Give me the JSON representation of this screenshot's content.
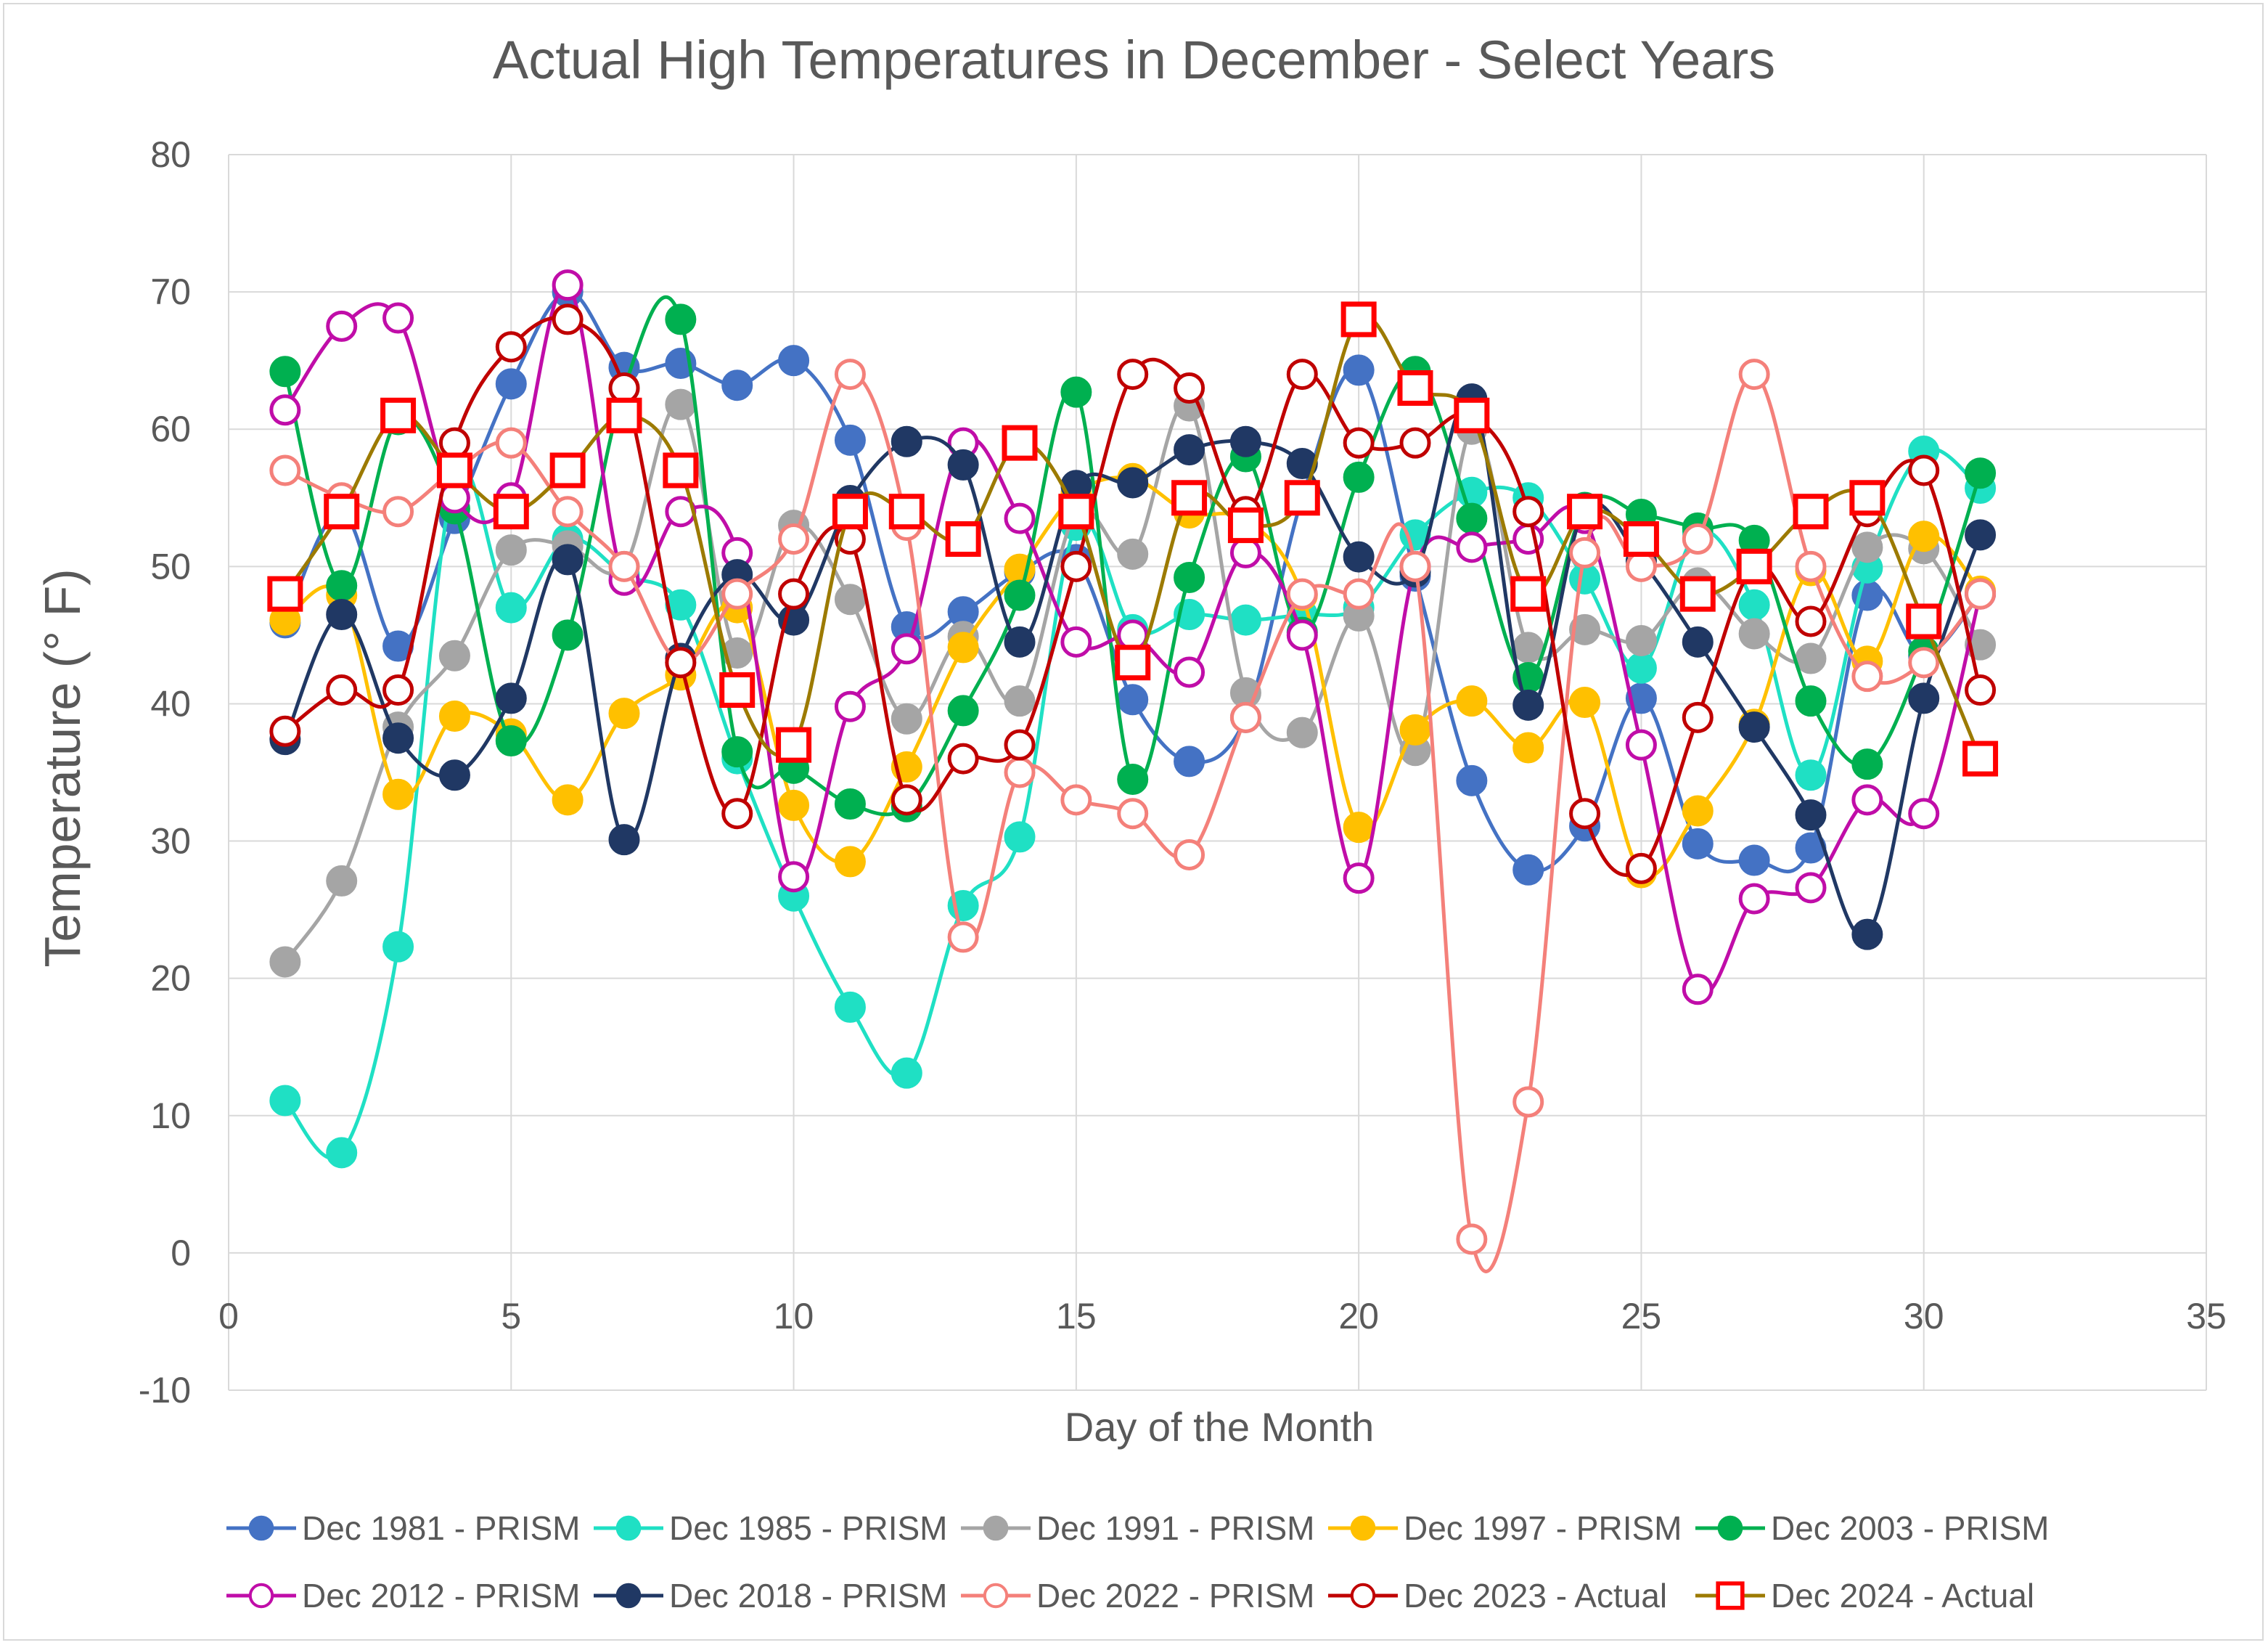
{
  "chart_data": {
    "type": "scatter",
    "title": "Actual High Temperatures in December - Select Years",
    "xlabel": "Day of the Month",
    "ylabel": "Temperature (° F)",
    "xlim": [
      0,
      35
    ],
    "ylim": [
      -10,
      80
    ],
    "xticks": [
      0,
      5,
      10,
      15,
      20,
      25,
      30,
      35
    ],
    "yticks": [
      -10,
      0,
      10,
      20,
      30,
      40,
      50,
      60,
      70,
      80
    ],
    "grid": true,
    "smooth_lines": true,
    "legend_position": "bottom",
    "x": [
      1,
      2,
      3,
      4,
      5,
      6,
      7,
      8,
      9,
      10,
      11,
      12,
      13,
      14,
      15,
      16,
      17,
      18,
      19,
      20,
      21,
      22,
      23,
      24,
      25,
      26,
      27,
      28,
      29,
      30,
      31
    ],
    "series": [
      {
        "name": "Dec 1981 - PRISM",
        "color": "#4472c4",
        "marker": "filled-circle",
        "values": [
          45.9,
          54,
          44.2,
          53.5,
          63.3,
          70,
          64.5,
          64.8,
          63.2,
          65,
          59.2,
          45.6,
          46.7,
          49.6,
          50.5,
          40.3,
          35.8,
          39,
          55,
          64.3,
          49.3,
          34.4,
          27.9,
          31.1,
          40.4,
          29.8,
          28.6,
          29.5,
          47.9,
          43.5,
          48
        ]
      },
      {
        "name": "Dec 1985 - PRISM",
        "color": "#1fe0c4",
        "marker": "filled-circle",
        "values": [
          11.1,
          7.3,
          22.3,
          56.4,
          47,
          52,
          49.4,
          47.2,
          36,
          26,
          17.9,
          13.1,
          25.3,
          30.3,
          53,
          45.4,
          46.5,
          46.1,
          46.5,
          47,
          52.3,
          55.4,
          55,
          49.1,
          42.6,
          52.5,
          47.2,
          34.8,
          49.9,
          58.4,
          55.7
        ]
      },
      {
        "name": "Dec 1991 - PRISM",
        "color": "#a5a5a5",
        "marker": "filled-circle",
        "values": [
          21.2,
          27.1,
          38.3,
          43.5,
          51.2,
          51.5,
          50,
          61.8,
          43.7,
          53,
          47.6,
          38.9,
          44.9,
          40.2,
          53.9,
          50.9,
          61.7,
          40.8,
          37.9,
          46.4,
          36.6,
          60,
          44.1,
          45.4,
          44.6,
          48.8,
          45.1,
          43.3,
          51.4,
          51.3,
          44.3
        ]
      },
      {
        "name": "Dec 1997 - PRISM",
        "color": "#ffc000",
        "marker": "filled-circle",
        "values": [
          46.1,
          47.9,
          33.4,
          39.1,
          37.8,
          33,
          39.3,
          42.1,
          47,
          32.6,
          28.5,
          35.4,
          44.1,
          49.8,
          55.3,
          56.4,
          53.9,
          53.4,
          47.9,
          31,
          38.1,
          40.2,
          36.8,
          40.1,
          27.7,
          32.2,
          38.5,
          49.7,
          43.1,
          52.2,
          48.2
        ]
      },
      {
        "name": "Dec 2003 - PRISM",
        "color": "#00b050",
        "marker": "filled-circle",
        "values": [
          64.2,
          48.6,
          60.7,
          54.2,
          37.3,
          45,
          63,
          68,
          36.5,
          35.3,
          32.7,
          32.5,
          39.5,
          47.9,
          62.7,
          34.5,
          49.2,
          58,
          45.2,
          56.5,
          64.2,
          53.5,
          41.9,
          54.3,
          53.8,
          52.8,
          51.9,
          40.2,
          35.6,
          43.8,
          56.8
        ]
      },
      {
        "name": "Dec 2012 - PRISM",
        "color": "#c00da8",
        "marker": "open-circle",
        "values": [
          61.4,
          67.5,
          68.1,
          55,
          55,
          70.5,
          49,
          54,
          51,
          27.4,
          39.8,
          44,
          59,
          53.5,
          44.5,
          45,
          42.3,
          51,
          45,
          27.3,
          50,
          51.4,
          52,
          53.5,
          37,
          19.2,
          25.8,
          26.6,
          33,
          32,
          48
        ]
      },
      {
        "name": "Dec 2018 - PRISM",
        "color": "#203864",
        "marker": "filled-circle",
        "values": [
          37.4,
          46.5,
          37.5,
          34.8,
          40.4,
          50.5,
          30.1,
          43.3,
          49.4,
          46.1,
          54.8,
          59.1,
          57.4,
          44.5,
          55.9,
          56.1,
          58.5,
          59.1,
          57.5,
          50.7,
          49.6,
          62.2,
          39.9,
          54.2,
          50.4,
          44.5,
          38.3,
          31.9,
          23.2,
          40.4,
          52.3
        ]
      },
      {
        "name": "Dec 2022 - PRISM",
        "color": "#f4807a",
        "marker": "open-circle",
        "values": [
          57,
          55,
          54,
          57,
          59,
          54,
          50,
          43,
          48,
          52,
          64,
          53,
          23,
          35,
          33,
          32,
          29,
          39,
          48,
          48,
          50,
          1,
          11,
          51,
          50,
          52,
          64,
          50,
          42,
          43,
          48
        ]
      },
      {
        "name": "Dec 2023 - Actual",
        "color": "#c00000",
        "marker": "open-circle",
        "values": [
          38,
          41,
          41,
          59,
          66,
          68,
          63,
          43,
          32,
          48,
          52,
          33,
          36,
          37,
          50,
          64,
          63,
          54,
          64,
          59,
          59,
          61,
          54,
          32,
          28,
          39,
          50,
          46,
          54,
          57,
          41
        ]
      },
      {
        "name": "Dec 2024 - Actual",
        "color": "#9c7a00",
        "marker": "open-square",
        "marker_color": "#ff0000",
        "values": [
          48,
          54,
          61,
          57,
          54,
          57,
          61,
          57,
          41,
          37,
          54,
          54,
          52,
          59,
          54,
          43,
          55,
          53,
          55,
          68,
          63,
          61,
          48,
          54,
          52,
          48,
          50,
          54,
          55,
          46,
          36
        ]
      }
    ]
  }
}
